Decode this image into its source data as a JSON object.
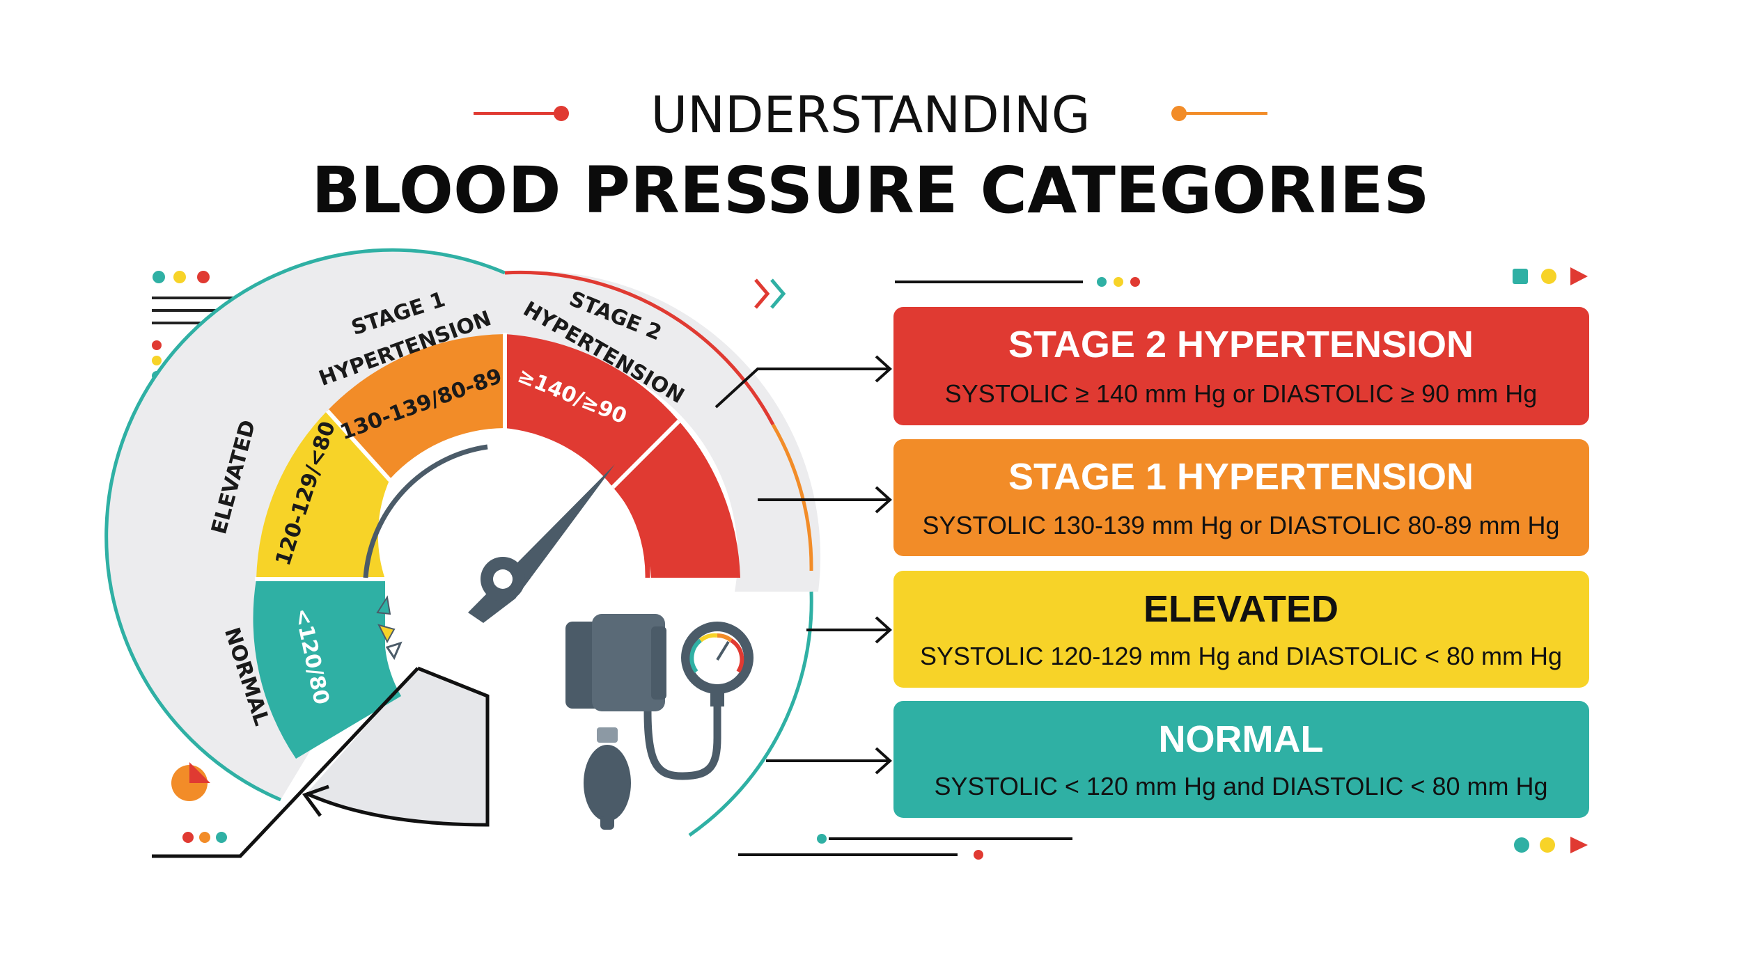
{
  "title": {
    "line1": "UNDERSTANDING",
    "line2": "BLOOD PRESSURE CATEGORIES"
  },
  "gauge": {
    "segments": [
      {
        "name": "NORMAL",
        "range": "<120/80",
        "color": "#2fb0a4"
      },
      {
        "name": "ELEVATED",
        "range": "120-129/<80",
        "color": "#f7d328"
      },
      {
        "name_line1": "STAGE 1",
        "name_line2": "HYPERTENSION",
        "range": "130-139/80-89",
        "color": "#f28c28"
      },
      {
        "name_line1": "STAGE 2",
        "name_line2": "HYPERTENSION",
        "range": "≥140/≥90",
        "color": "#e03a32"
      }
    ]
  },
  "categories": [
    {
      "title": "STAGE 2 HYPERTENSION",
      "desc": "SYSTOLIC ≥ 140 mm Hg  or  DIASTOLIC ≥ 90 mm Hg",
      "color": "#e03a32",
      "title_color": "#ffffff"
    },
    {
      "title": "STAGE 1 HYPERTENSION",
      "desc": "SYSTOLIC 130-139 mm Hg or DIASTOLIC 80-89 mm Hg",
      "color": "#f28c28",
      "title_color": "#ffffff"
    },
    {
      "title": "ELEVATED",
      "desc": "SYSTOLIC 120-129 mm Hg and DIASTOLIC < 80 mm Hg",
      "color": "#f7d328",
      "title_color": "#111111"
    },
    {
      "title": "NORMAL",
      "desc": "SYSTOLIC < 120 mm Hg and DIASTOLIC < 80 mm Hg",
      "color": "#2fb0a4",
      "title_color": "#ffffff"
    }
  ],
  "colors": {
    "red": "#e03a32",
    "orange": "#f28c28",
    "yellow": "#f7d328",
    "teal": "#2fb0a4",
    "slate": "#4b5b68",
    "ring": "#e8e9eb"
  }
}
